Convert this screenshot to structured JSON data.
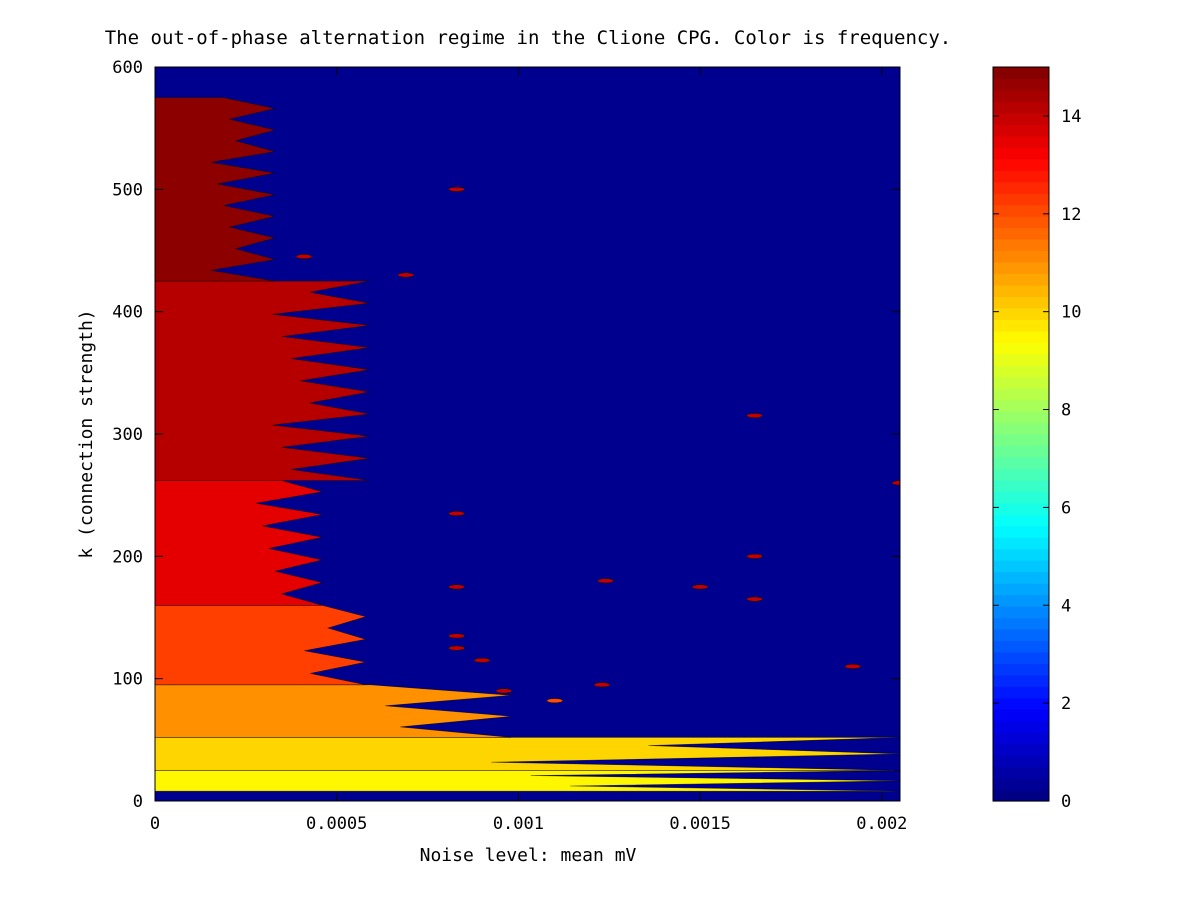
{
  "chart_data": {
    "type": "heatmap",
    "subtype": "filled-contour",
    "title": "The out-of-phase alternation regime in the Clione CPG.  Color is frequency.",
    "xlabel": "Noise level: mean mV",
    "ylabel": "k (connection strength)",
    "xlim": [
      0,
      0.00205
    ],
    "ylim": [
      0,
      600
    ],
    "x_ticks": [
      0,
      0.0005,
      0.001,
      0.0015,
      0.002
    ],
    "x_tick_labels": [
      "0",
      "0.0005",
      "0.001",
      "0.0015",
      "0.002"
    ],
    "y_ticks": [
      0,
      100,
      200,
      300,
      400,
      500,
      600
    ],
    "y_tick_labels": [
      "0",
      "100",
      "200",
      "300",
      "400",
      "500",
      "600"
    ],
    "colorbar": {
      "label": "",
      "colormap": "jet",
      "range": [
        0,
        15
      ],
      "ticks": [
        0,
        2,
        4,
        6,
        8,
        10,
        12,
        14
      ],
      "tick_labels": [
        "0",
        "2",
        "4",
        "6",
        "8",
        "10",
        "12",
        "14"
      ]
    },
    "background_value": 0,
    "bands": [
      {
        "value": 9.5,
        "k_range": [
          8,
          25
        ],
        "x_extent": [
          0.00032,
          0.00205
        ]
      },
      {
        "value": 10.0,
        "k_range": [
          25,
          52
        ],
        "x_extent": [
          0.00032,
          0.00205
        ]
      },
      {
        "value": 11.0,
        "k_range": [
          52,
          95
        ],
        "x_extent": [
          0.00032,
          0.00098
        ]
      },
      {
        "value": 12.2,
        "k_range": [
          95,
          160
        ],
        "x_extent": [
          0.00032,
          0.00058
        ]
      },
      {
        "value": 13.5,
        "k_range": [
          160,
          262
        ],
        "x_extent": [
          0.00018,
          0.00046
        ]
      },
      {
        "value": 14.2,
        "k_range": [
          262,
          425
        ],
        "x_extent": [
          0.00018,
          0.00059
        ]
      },
      {
        "value": 14.8,
        "k_range": [
          425,
          575
        ],
        "x_extent": [
          6e-05,
          0.00033
        ]
      }
    ],
    "islands": [
      {
        "x": 0.00083,
        "k": 500,
        "value": 14
      },
      {
        "x": 0.00041,
        "k": 445,
        "value": 14
      },
      {
        "x": 0.00069,
        "k": 430,
        "value": 14
      },
      {
        "x": 0.00165,
        "k": 315,
        "value": 14
      },
      {
        "x": 0.00205,
        "k": 260,
        "value": 14
      },
      {
        "x": 0.00083,
        "k": 235,
        "value": 14
      },
      {
        "x": 0.00165,
        "k": 200,
        "value": 14
      },
      {
        "x": 0.00124,
        "k": 180,
        "value": 14
      },
      {
        "x": 0.00083,
        "k": 175,
        "value": 14
      },
      {
        "x": 0.0015,
        "k": 175,
        "value": 14
      },
      {
        "x": 0.00165,
        "k": 165,
        "value": 14
      },
      {
        "x": 0.00083,
        "k": 135,
        "value": 14
      },
      {
        "x": 0.00083,
        "k": 125,
        "value": 14
      },
      {
        "x": 0.0009,
        "k": 115,
        "value": 14
      },
      {
        "x": 0.00192,
        "k": 110,
        "value": 14
      },
      {
        "x": 0.00123,
        "k": 95,
        "value": 14
      },
      {
        "x": 0.00096,
        "k": 90,
        "value": 14
      },
      {
        "x": 0.0011,
        "k": 82,
        "value": 12
      }
    ]
  }
}
